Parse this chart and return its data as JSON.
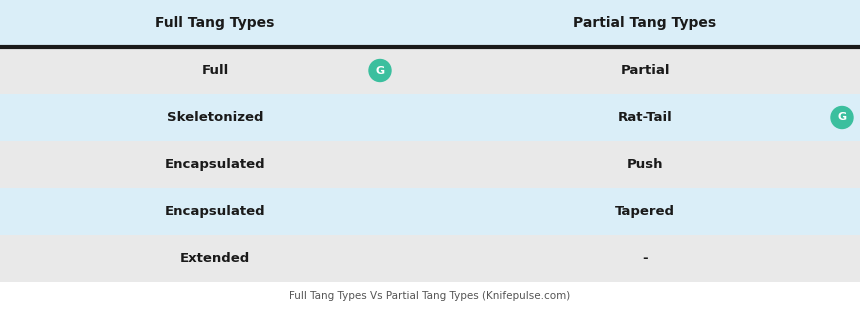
{
  "col1_header": "Full Tang Types",
  "col2_header": "Partial Tang Types",
  "rows": [
    {
      "left": "Full",
      "right": "Partial",
      "left_icon": true,
      "right_icon": false
    },
    {
      "left": "Skeletonized",
      "right": "Rat-Tail",
      "left_icon": false,
      "right_icon": true
    },
    {
      "left": "Encapsulated",
      "right": "Push",
      "left_icon": false,
      "right_icon": false
    },
    {
      "left": "Encapsulated",
      "right": "Tapered",
      "left_icon": false,
      "right_icon": false
    },
    {
      "left": "Extended",
      "right": "-",
      "left_icon": false,
      "right_icon": false
    }
  ],
  "header_bg": "#daeef8",
  "row_bg_light": "#daeef8",
  "row_bg_gray": "#e9e9e9",
  "icon_color": "#3bbf9e",
  "header_text_color": "#1a1a1a",
  "cell_text_color": "#1a1a1a",
  "caption": "Full Tang Types Vs Partial Tang Types (Knifepulse.com)",
  "caption_color": "#555555",
  "divider_color": "#1a1a1a",
  "fig_bg": "#ffffff",
  "table_bg": "#ffffff"
}
